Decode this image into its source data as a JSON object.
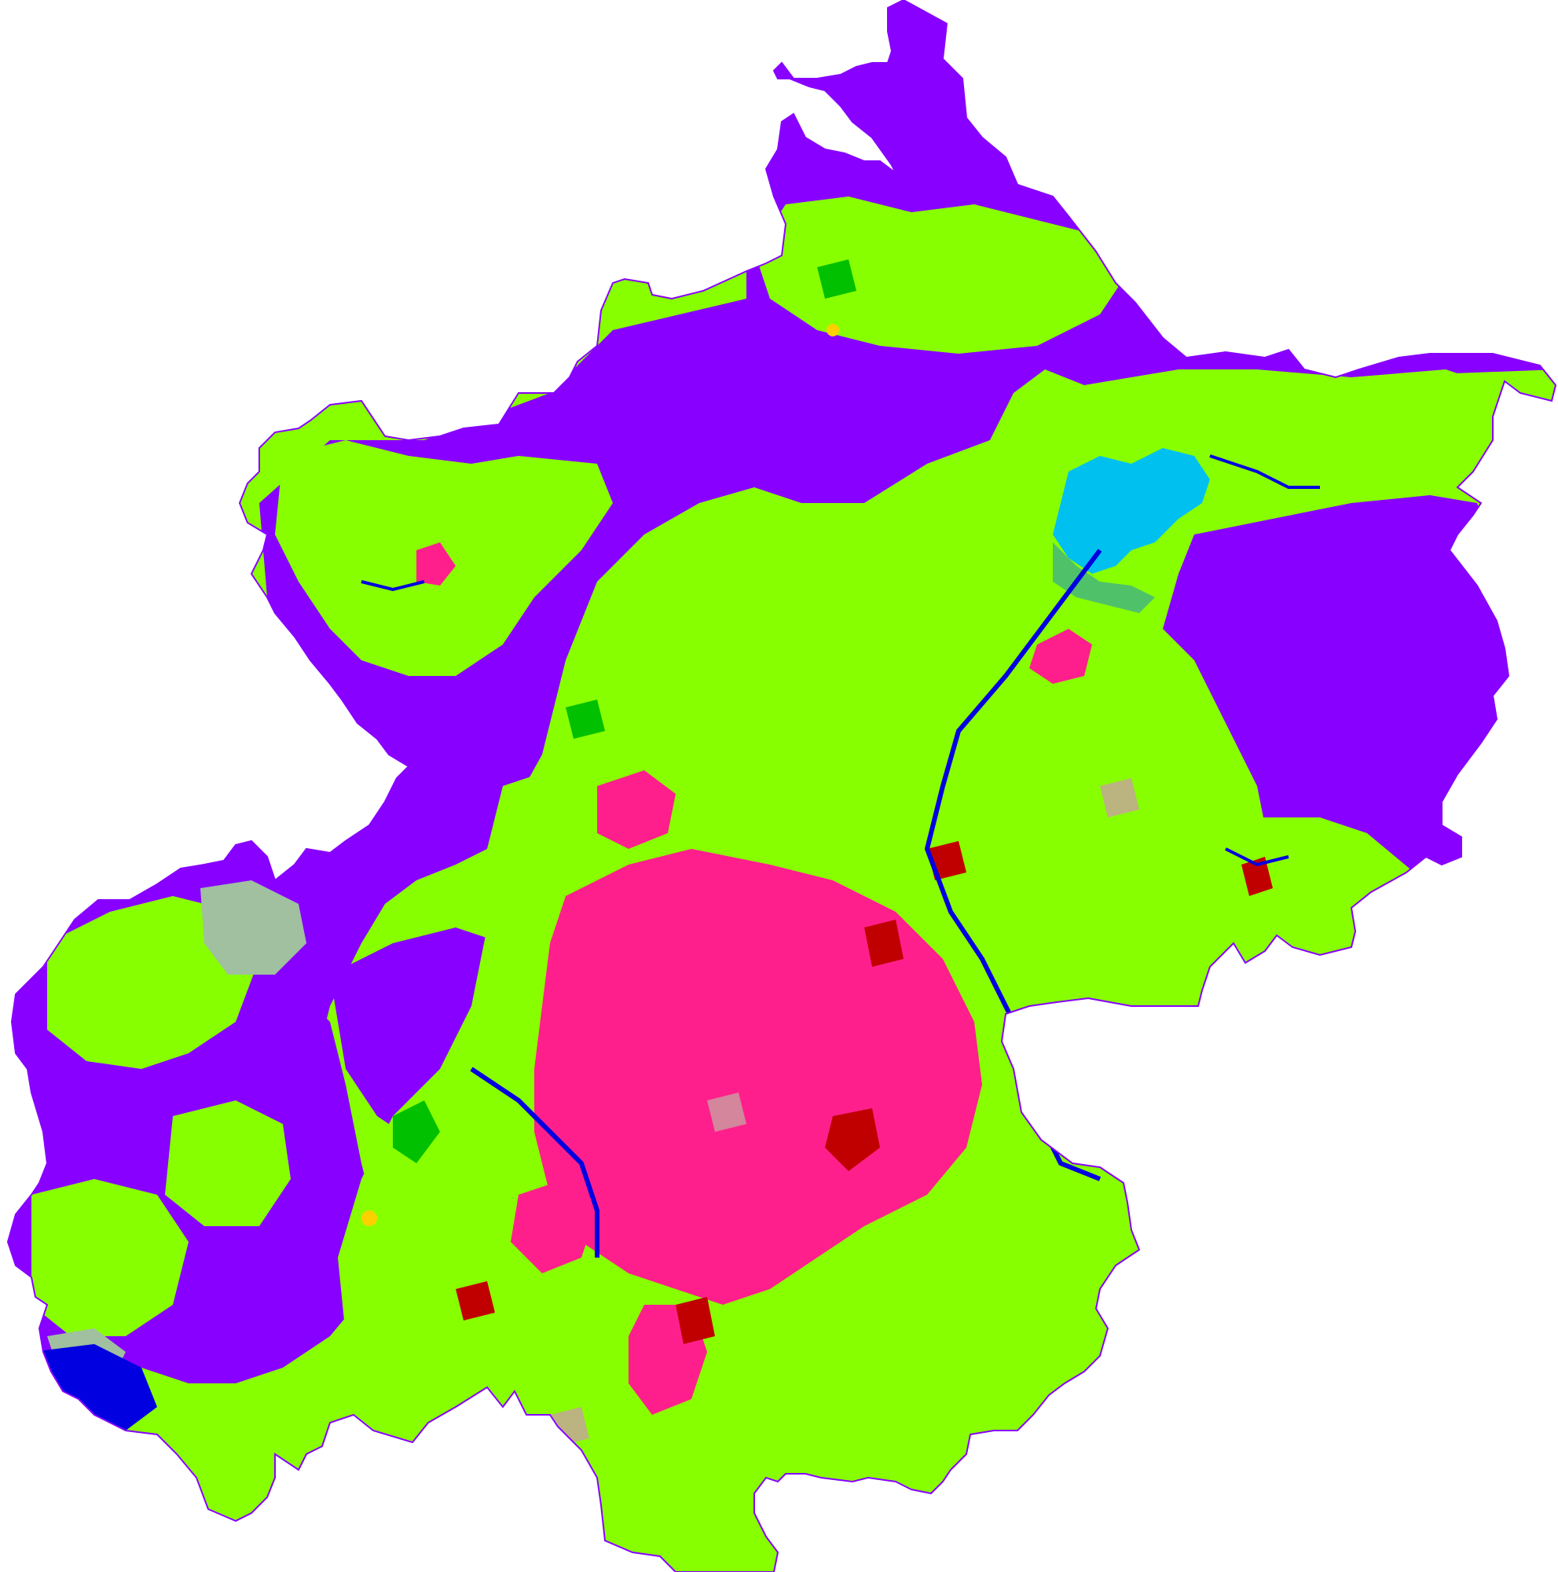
{
  "map": {
    "type": "land-cover classification map",
    "background_color": "#ffffff",
    "text_labels": [],
    "classes": [
      {
        "key": "mountain",
        "color": "#8800ff"
      },
      {
        "key": "vegetation",
        "color": "#88ff00"
      },
      {
        "key": "urban",
        "color": "#ff1f8c"
      },
      {
        "key": "industrial",
        "color": "#c00000"
      },
      {
        "key": "bare",
        "color": "#c8a0a0"
      },
      {
        "key": "grassland",
        "color": "#a0c0a0"
      },
      {
        "key": "water",
        "color": "#0000e0"
      },
      {
        "key": "reservoir",
        "color": "#00c0f0"
      },
      {
        "key": "teal",
        "color": "#2090c0"
      },
      {
        "key": "forest",
        "color": "#00c000"
      },
      {
        "key": "accent",
        "color": "#ffd000"
      }
    ]
  }
}
